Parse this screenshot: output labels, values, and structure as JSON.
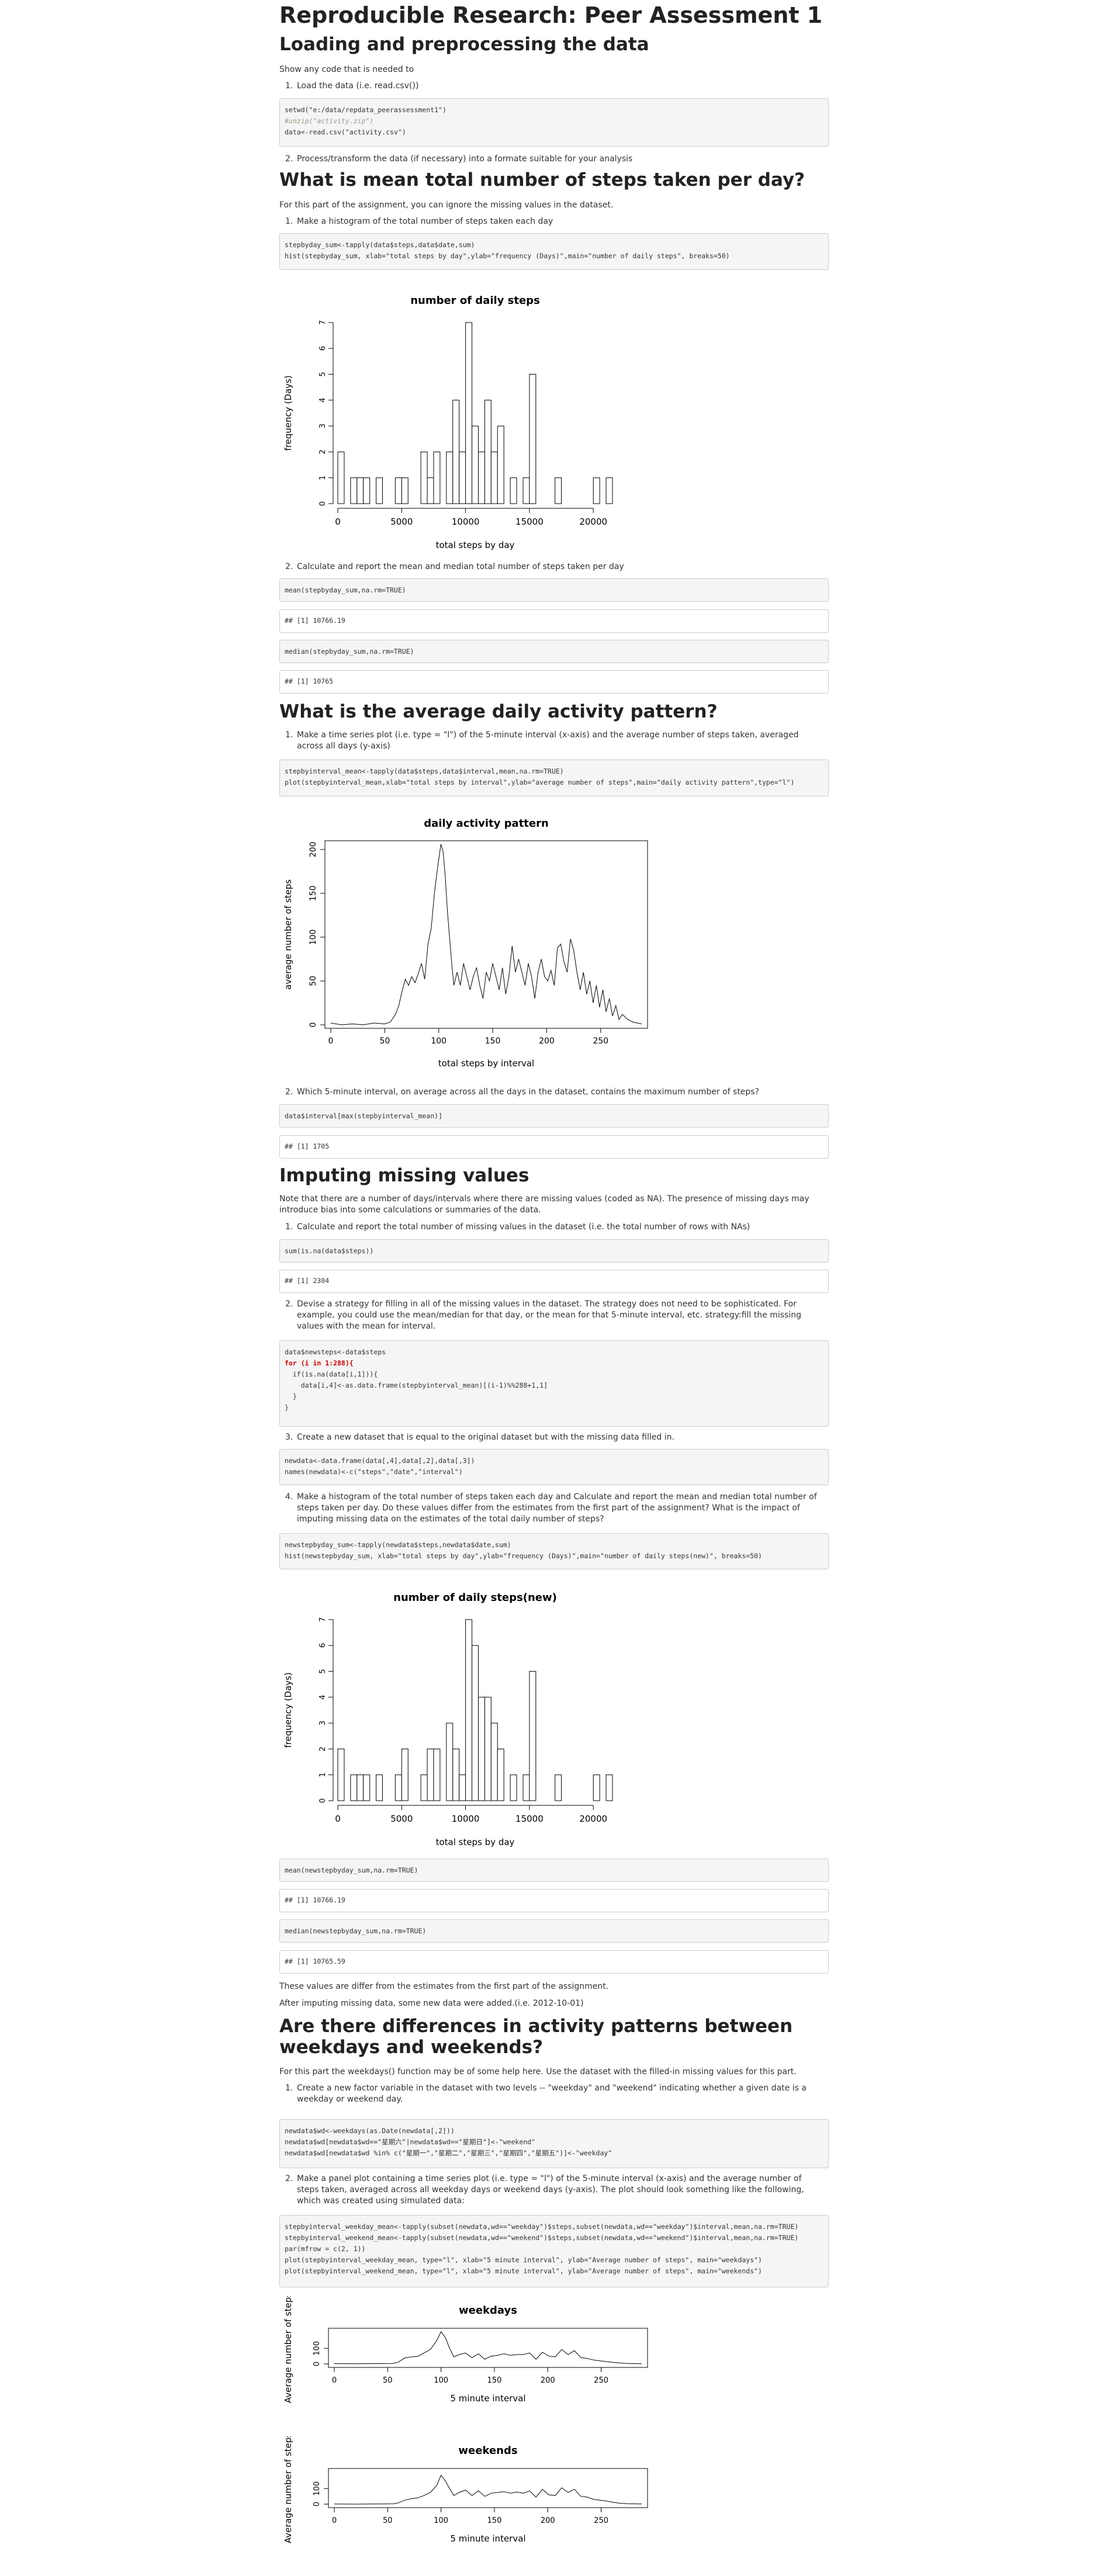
{
  "title": "Reproducible Research: Peer Assessment 1",
  "sec1": {
    "heading": "Loading and preprocessing the data",
    "intro": "Show any code that is needed to",
    "item1": "Load the data (i.e. read.csv())",
    "code": [
      "setwd(\"e:/data/repdata_peerassessment1\")",
      "#unzip(\"activity.zip\")",
      "data<-read.csv(\"activity.csv\")"
    ],
    "item2": "Process/transform the data (if necessary) into a formate suitable for your analysis"
  },
  "sec2": {
    "heading": "What is mean total number of steps taken per day?",
    "intro": "For this part of the assignment, you can ignore the missing values in the dataset.",
    "item1": "Make a histogram of the total number of steps taken each day",
    "code": [
      "stepbyday_sum<-tapply(data$steps,data$date,sum)",
      "hist(stepbyday_sum, xlab=\"total steps by day\",ylab=\"frequency (Days)\",main=\"number of daily steps\", breaks=50)"
    ],
    "item2": "Calculate and report the mean and median total number of steps taken per day",
    "code_mean": "mean(stepbyday_sum,na.rm=TRUE)",
    "out_mean": "## [1] 10766.19",
    "code_median": "median(stepbyday_sum,na.rm=TRUE)",
    "out_median": "## [1] 10765"
  },
  "sec3": {
    "heading": "What is the average daily activity pattern?",
    "item1": "Make a time series plot (i.e. type = \"l\") of the 5-minute interval (x-axis) and the average number of steps taken, averaged across all days (y-axis)",
    "code": [
      "stepbyinterval_mean<-tapply(data$steps,data$interval,mean,na.rm=TRUE)",
      "plot(stepbyinterval_mean,xlab=\"total steps by interval\",ylab=\"average number of steps\",main=\"daily activity pattern\",type=\"l\")"
    ],
    "item2": "Which 5-minute interval, on average across all the days in the dataset, contains the maximum number of steps?",
    "code_max": "data$interval[max(stepbyinterval_mean)]",
    "out_max": "## [1] 1705"
  },
  "sec4": {
    "heading": "Imputing missing values",
    "intro": "Note that there are a number of days/intervals where there are missing values (coded as NA). The presence of missing days may introduce bias into some calculations or summaries of the data.",
    "item1": "Calculate and report the total number of missing values in the dataset (i.e. the total number of rows with NAs)",
    "code_na": "sum(is.na(data$steps))",
    "out_na": "## [1] 2304",
    "item2": "Devise a strategy for filling in all of the missing values in the dataset. The strategy does not need to be sophisticated. For example, you could use the mean/median for that day, or the mean for that 5-minute interval, etc. strategy:fill the missing values with the mean for interval.",
    "code_fill": [
      "data$newsteps<-data$steps",
      "for (i in 1:288){",
      "  if(is.na(data[i,1])){",
      "    data[i,4]<-as.data.frame(stepbyinterval_mean)[(i-1)%%288+1,1]",
      "  }",
      "}"
    ],
    "item3": "Create a new dataset that is equal to the original dataset but with the missing data filled in.",
    "code_new": [
      "newdata<-data.frame(data[,4],data[,2],data[,3])",
      "names(newdata)<-c(\"steps\",\"date\",\"interval\")"
    ],
    "item4": "Make a histogram of the total number of steps taken each day and Calculate and report the mean and median total number of steps taken per day. Do these values differ from the estimates from the first part of the assignment? What is the impact of imputing missing data on the estimates of the total daily number of steps?",
    "code_hist": [
      "newstepbyday_sum<-tapply(newdata$steps,newdata$date,sum)",
      "hist(newstepbyday_sum, xlab=\"total steps by day\",ylab=\"frequency (Days)\",main=\"number of daily steps(new)\", breaks=50)"
    ],
    "code_mean": "mean(newstepbyday_sum,na.rm=TRUE)",
    "out_mean": "## [1] 10766.19",
    "code_median": "median(newstepbyday_sum,na.rm=TRUE)",
    "out_median": "## [1] 10765.59",
    "note1": "These values are differ from the estimates from the first part of the assignment.",
    "note2": "After imputing missing data, some new data were added.(i.e. 2012-10-01)"
  },
  "sec5": {
    "heading": "Are there differences in activity patterns between weekdays and weekends?",
    "intro": "For this part the weekdays() function may be of some help here. Use the dataset with the filled-in missing values for this part.",
    "item1": "Create a new factor variable in the dataset with two levels -- \"weekday\" and \"weekend\" indicating whether a given date is a weekday or weekend day.",
    "code_wd": [
      "newdata$wd<-weekdays(as.Date(newdata[,2]))",
      "newdata$wd[newdata$wd==\"星期六\"|newdata$wd==\"星期日\"]<-\"weekend\"",
      "newdata$wd[newdata$wd %in% c(\"星期一\",\"星期二\",\"星期三\",\"星期四\",\"星期五\")]<-\"weekday\""
    ],
    "item2": "Make a panel plot containing a time series plot (i.e. type = \"l\") of the 5-minute interval (x-axis) and the average number of steps taken, averaged across all weekday days or weekend days (y-axis). The plot should look something like the following, which was created using simulated data:",
    "code_panel": [
      "stepbyinterval_weekday_mean<-tapply(subset(newdata,wd==\"weekday\")$steps,subset(newdata,wd==\"weekday\")$interval,mean,na.rm=TRUE)",
      "stepbyinterval_weekend_mean<-tapply(subset(newdata,wd==\"weekend\")$steps,subset(newdata,wd==\"weekend\")$interval,mean,na.rm=TRUE)",
      "par(mfrow = c(2, 1))",
      "plot(stepbyinterval_weekday_mean, type=\"l\", xlab=\"5 minute interval\", ylab=\"Average number of steps\", main=\"weekdays\")",
      "plot(stepbyinterval_weekend_mean, type=\"l\", xlab=\"5 minute interval\", ylab=\"Average number of steps\", main=\"weekends\")"
    ]
  },
  "chart_data": [
    {
      "type": "bar",
      "title": "number of daily steps",
      "xlabel": "total steps by day",
      "ylabel": "frequency (Days)",
      "xlim": [
        0,
        21500
      ],
      "ylim": [
        0,
        7
      ],
      "xticks": [
        "0",
        "5000",
        "10000",
        "15000",
        "20000"
      ],
      "yticks": [
        "0",
        "1",
        "2",
        "3",
        "4",
        "5",
        "6",
        "7"
      ],
      "bin_width": 500,
      "bins": [
        [
          0,
          2
        ],
        [
          1000,
          1
        ],
        [
          1500,
          1
        ],
        [
          2000,
          1
        ],
        [
          3000,
          1
        ],
        [
          4500,
          1
        ],
        [
          5000,
          1
        ],
        [
          6500,
          2
        ],
        [
          7000,
          1
        ],
        [
          7500,
          2
        ],
        [
          8500,
          2
        ],
        [
          9000,
          4
        ],
        [
          9500,
          2
        ],
        [
          10000,
          7
        ],
        [
          10500,
          3
        ],
        [
          11000,
          2
        ],
        [
          11500,
          4
        ],
        [
          12000,
          2
        ],
        [
          12500,
          3
        ],
        [
          13500,
          1
        ],
        [
          14500,
          1
        ],
        [
          15000,
          5
        ],
        [
          17000,
          1
        ],
        [
          20000,
          1
        ],
        [
          21000,
          1
        ]
      ]
    },
    {
      "type": "line",
      "title": "daily activity pattern",
      "xlabel": "total steps by interval",
      "ylabel": "average number of steps",
      "xlim": [
        0,
        288
      ],
      "ylim": [
        0,
        206
      ],
      "xticks": [
        "0",
        "50",
        "100",
        "150",
        "200",
        "250"
      ],
      "yticks": [
        "0",
        "50",
        "100",
        "150",
        "200"
      ],
      "x": [
        0,
        10,
        20,
        30,
        40,
        50,
        55,
        60,
        63,
        66,
        69,
        72,
        75,
        78,
        81,
        84,
        87,
        90,
        93,
        96,
        99,
        102,
        104,
        106,
        108,
        110,
        112,
        114,
        117,
        120,
        123,
        126,
        129,
        132,
        135,
        138,
        141,
        144,
        147,
        150,
        153,
        156,
        159,
        162,
        165,
        168,
        171,
        174,
        177,
        180,
        183,
        186,
        189,
        192,
        195,
        198,
        201,
        204,
        207,
        210,
        213,
        216,
        219,
        222,
        225,
        228,
        231,
        234,
        237,
        240,
        243,
        246,
        249,
        252,
        255,
        258,
        261,
        264,
        267,
        270,
        275,
        280,
        288
      ],
      "y": [
        2,
        0,
        1,
        0,
        2,
        1,
        3,
        12,
        22,
        38,
        52,
        45,
        55,
        48,
        58,
        70,
        52,
        92,
        110,
        150,
        180,
        206,
        198,
        170,
        130,
        100,
        70,
        45,
        60,
        45,
        70,
        55,
        40,
        55,
        65,
        45,
        30,
        60,
        50,
        70,
        55,
        40,
        65,
        35,
        55,
        90,
        60,
        75,
        60,
        45,
        70,
        55,
        30,
        60,
        75,
        55,
        50,
        62,
        45,
        88,
        92,
        72,
        60,
        98,
        85,
        60,
        40,
        60,
        35,
        50,
        25,
        45,
        20,
        40,
        15,
        30,
        10,
        22,
        6,
        12,
        6,
        3,
        1
      ]
    },
    {
      "type": "bar",
      "title": "number of daily steps(new)",
      "xlabel": "total steps by day",
      "ylabel": "frequency (Days)",
      "xlim": [
        0,
        21500
      ],
      "ylim": [
        0,
        7
      ],
      "xticks": [
        "0",
        "5000",
        "10000",
        "15000",
        "20000"
      ],
      "yticks": [
        "0",
        "1",
        "2",
        "3",
        "4",
        "5",
        "6",
        "7"
      ],
      "bin_width": 500,
      "bins": [
        [
          0,
          2
        ],
        [
          1000,
          1
        ],
        [
          1500,
          1
        ],
        [
          2000,
          1
        ],
        [
          3000,
          1
        ],
        [
          4500,
          1
        ],
        [
          5000,
          2
        ],
        [
          6500,
          1
        ],
        [
          7000,
          2
        ],
        [
          7500,
          2
        ],
        [
          8500,
          3
        ],
        [
          9000,
          2
        ],
        [
          9500,
          1
        ],
        [
          10000,
          7
        ],
        [
          10500,
          6
        ],
        [
          11000,
          4
        ],
        [
          11500,
          4
        ],
        [
          12000,
          3
        ],
        [
          12500,
          2
        ],
        [
          13500,
          1
        ],
        [
          14500,
          1
        ],
        [
          15000,
          5
        ],
        [
          17000,
          1
        ],
        [
          20000,
          1
        ],
        [
          21000,
          1
        ]
      ]
    },
    {
      "type": "line",
      "title": "weekdays",
      "xlabel": "5 minute interval",
      "ylabel": "Average number of steps",
      "xlim": [
        0,
        288
      ],
      "ylim": [
        0,
        206
      ],
      "xticks": [
        "0",
        "50",
        "100",
        "150",
        "200",
        "250"
      ],
      "yticks": [
        "0",
        "100"
      ],
      "x": [
        0,
        20,
        40,
        55,
        60,
        66,
        72,
        78,
        84,
        90,
        96,
        100,
        104,
        108,
        112,
        117,
        123,
        129,
        135,
        141,
        147,
        153,
        159,
        165,
        171,
        177,
        183,
        189,
        195,
        201,
        207,
        213,
        219,
        225,
        231,
        237,
        243,
        249,
        255,
        261,
        267,
        275,
        288
      ],
      "y": [
        2,
        1,
        2,
        3,
        12,
        38,
        45,
        48,
        70,
        92,
        150,
        206,
        170,
        100,
        45,
        60,
        70,
        40,
        65,
        30,
        50,
        55,
        65,
        55,
        60,
        60,
        70,
        30,
        75,
        50,
        45,
        92,
        60,
        85,
        40,
        35,
        25,
        20,
        15,
        10,
        6,
        3,
        1
      ]
    },
    {
      "type": "line",
      "title": "weekends",
      "xlabel": "5 minute interval",
      "ylabel": "Average number of steps",
      "xlim": [
        0,
        288
      ],
      "ylim": [
        0,
        206
      ],
      "xticks": [
        "0",
        "50",
        "100",
        "150",
        "200",
        "250"
      ],
      "yticks": [
        "0",
        "100"
      ],
      "x": [
        0,
        20,
        40,
        55,
        60,
        66,
        72,
        78,
        84,
        90,
        96,
        100,
        104,
        108,
        112,
        117,
        123,
        129,
        135,
        141,
        147,
        153,
        159,
        165,
        171,
        177,
        183,
        189,
        195,
        201,
        207,
        213,
        219,
        225,
        231,
        237,
        243,
        249,
        255,
        261,
        267,
        275,
        288
      ],
      "y": [
        1,
        0,
        1,
        2,
        8,
        25,
        35,
        40,
        55,
        75,
        120,
        185,
        150,
        100,
        55,
        75,
        90,
        55,
        85,
        50,
        70,
        75,
        80,
        70,
        78,
        70,
        85,
        45,
        95,
        60,
        55,
        105,
        75,
        95,
        50,
        45,
        30,
        25,
        20,
        12,
        6,
        3,
        1
      ]
    }
  ]
}
